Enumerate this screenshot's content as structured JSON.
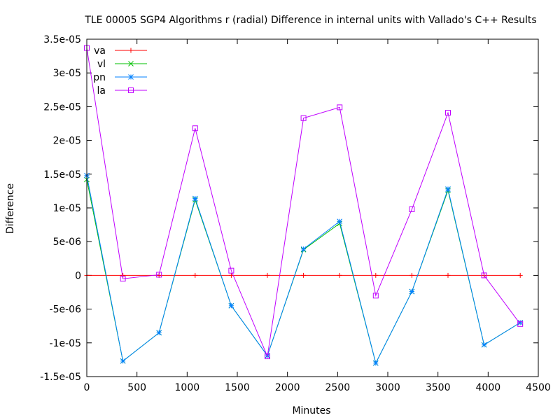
{
  "chart_data": {
    "type": "line",
    "title": "TLE 00005 SGP4 Algorithms r (radial) Difference in internal units with Vallado's C++ Results",
    "xlabel": "Minutes",
    "ylabel": "Difference",
    "xlim": [
      0,
      4500
    ],
    "ylim": [
      -1.5e-05,
      3.5e-05
    ],
    "x_ticks": [
      0,
      500,
      1000,
      1500,
      2000,
      2500,
      3000,
      3500,
      4000,
      4500
    ],
    "x_tick_labels": [
      "0",
      "500",
      "1000",
      "1500",
      "2000",
      "2500",
      "3000",
      "3500",
      "4000",
      "4500"
    ],
    "y_ticks": [
      -1.5e-05,
      -1e-05,
      -5e-06,
      0,
      5e-06,
      1e-05,
      1.5e-05,
      2e-05,
      2.5e-05,
      3e-05,
      3.5e-05
    ],
    "y_tick_labels": [
      "-1.5e-05",
      "-1e-05",
      "-5e-06",
      "0",
      "5e-06",
      "1e-05",
      "1.5e-05",
      "2e-05",
      "2.5e-05",
      "3e-05",
      "3.5e-05"
    ],
    "grid": false,
    "legend_position": "top-left",
    "x": [
      0,
      360,
      720,
      1080,
      1440,
      1800,
      2160,
      2520,
      2880,
      3240,
      3600,
      3960,
      4320
    ],
    "series": [
      {
        "name": "va",
        "color": "#ff0000",
        "marker": "plus",
        "values": [
          0,
          0,
          0,
          0,
          0,
          0,
          0,
          0,
          0,
          0,
          0,
          0,
          0
        ]
      },
      {
        "name": "vl",
        "color": "#00c000",
        "marker": "cross",
        "values": [
          1.42e-05,
          -1.27e-05,
          -8.5e-06,
          1.12e-05,
          -4.5e-06,
          -1.19e-05,
          3.8e-06,
          7.7e-06,
          -1.3e-05,
          -2.4e-06,
          1.26e-05,
          -1.03e-05,
          -7e-06
        ]
      },
      {
        "name": "pn",
        "color": "#0080ff",
        "marker": "star",
        "values": [
          1.48e-05,
          -1.27e-05,
          -8.5e-06,
          1.14e-05,
          -4.5e-06,
          -1.19e-05,
          3.9e-06,
          8e-06,
          -1.3e-05,
          -2.4e-06,
          1.28e-05,
          -1.03e-05,
          -7e-06
        ]
      },
      {
        "name": "la",
        "color": "#c000ff",
        "marker": "square",
        "values": [
          3.37e-05,
          -5e-07,
          1e-07,
          2.18e-05,
          7e-07,
          -1.2e-05,
          2.33e-05,
          2.49e-05,
          -3e-06,
          9.8e-06,
          2.41e-05,
          0,
          -7.2e-06
        ]
      }
    ]
  }
}
